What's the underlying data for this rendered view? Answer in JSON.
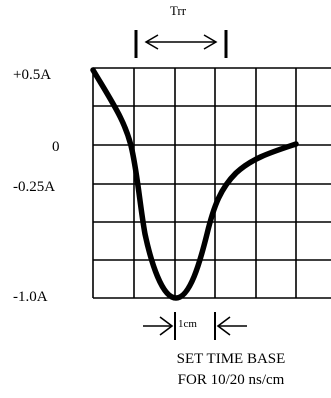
{
  "header_label": "Trr",
  "y_labels": {
    "top": "+0.5A",
    "zero": "0",
    "mid": "-0.25A",
    "bottom": "-1.0A"
  },
  "scale_label": "1cm",
  "caption": {
    "line1": "SET TIME BASE",
    "line2": "FOR 10/20 ns/cm"
  },
  "colors": {
    "ink": "#000000",
    "background": "#ffffff"
  }
}
